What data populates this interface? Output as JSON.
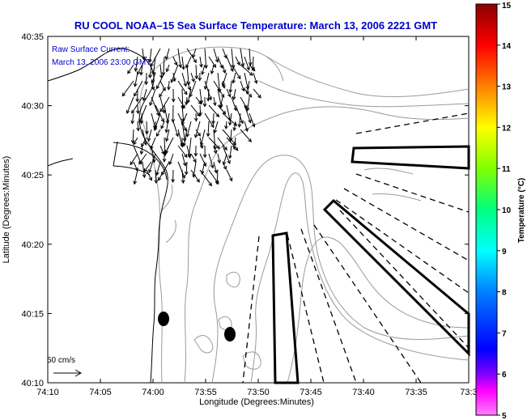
{
  "title": "RU COOL  NOAA–15  Sea Surface Temperature:  March 13, 2006 2221 GMT",
  "legend": {
    "line1": "Raw Surface Current:",
    "line2": "March 13, 2006 23:00 GMT"
  },
  "scale": {
    "label": "50 cm/s"
  },
  "axes": {
    "xlabel": "Longitude (Degrees:Minutes)",
    "ylabel": "Latitude (Degrees:Minutes)",
    "xticks": [
      "74:10",
      "74:05",
      "74:00",
      "73:55",
      "73:50",
      "73:45",
      "73:40",
      "73:35",
      "73:3"
    ],
    "yticks": [
      "40:35",
      "40:30",
      "40:25",
      "40:20",
      "40:15",
      "40:10"
    ]
  },
  "colorbar": {
    "label": "Temperature (°C)",
    "ticks": [
      "15",
      "14",
      "13",
      "12",
      "11",
      "10",
      "9",
      "8",
      "7",
      "6",
      "5"
    ],
    "colors": [
      "#8b0000",
      "#ff0000",
      "#ff8000",
      "#ffff00",
      "#80ff00",
      "#00ff80",
      "#00ffff",
      "#0080ff",
      "#0000ff",
      "#8000ff",
      "#ff00ff"
    ]
  },
  "colors": {
    "title": "#0000cc",
    "legend_text": "#0000cc"
  }
}
